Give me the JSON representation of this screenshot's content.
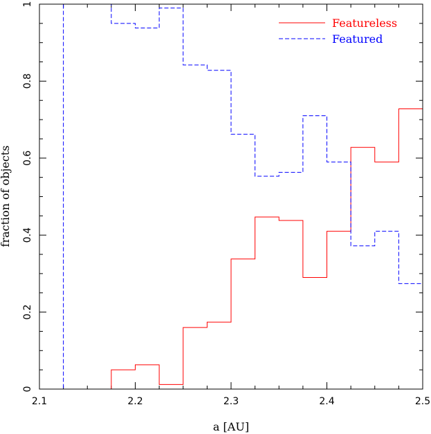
{
  "chart_data": {
    "type": "step",
    "title": "",
    "xlabel": "a [AU]",
    "ylabel": "fraction of objects",
    "xlim": [
      2.1,
      2.5
    ],
    "ylim": [
      0,
      1
    ],
    "bin_edges": [
      2.1,
      2.125,
      2.15,
      2.175,
      2.2,
      2.225,
      2.25,
      2.275,
      2.3,
      2.325,
      2.35,
      2.375,
      2.4,
      2.425,
      2.45,
      2.475,
      2.5
    ],
    "x_ticks": [
      "2.1",
      "2.2",
      "2.3",
      "2.4",
      "2.5"
    ],
    "y_ticks": [
      "0",
      "0.2",
      "0.4",
      "0.6",
      "0.8",
      "1"
    ],
    "series": [
      {
        "name": "Featureless",
        "color": "#ff0000",
        "style": "solid",
        "values": [
          0,
          0,
          0,
          0.05,
          0.063,
          0.012,
          0.16,
          0.174,
          0.338,
          0.447,
          0.438,
          0.29,
          0.41,
          0.628,
          0.59,
          0.728
        ]
      },
      {
        "name": "Featured",
        "color": "#0000ff",
        "style": "dashed",
        "values": [
          0,
          1.0,
          1.0,
          0.95,
          0.938,
          0.99,
          0.842,
          0.828,
          0.662,
          0.553,
          0.563,
          0.71,
          0.59,
          0.372,
          0.41,
          0.274
        ]
      }
    ],
    "legend": {
      "position": "top-right"
    },
    "grid": false
  }
}
